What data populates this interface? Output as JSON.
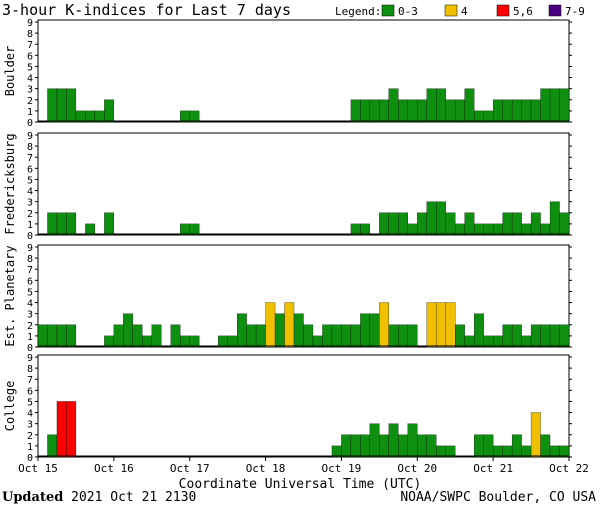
{
  "chart_data": {
    "type": "bar",
    "title": "3-hour K-indices for Last 7 days",
    "legend": {
      "title": "Legend:",
      "position": "top-right",
      "entries": [
        {
          "label": "0-3",
          "color": "#0f8f0f"
        },
        {
          "label": "4",
          "color": "#f0c000"
        },
        {
          "label": "5,6",
          "color": "#ff0000"
        },
        {
          "label": "7-9",
          "color": "#4b0082"
        }
      ]
    },
    "xlabel": "Coordinate Universal Time (UTC)",
    "x_ticks": [
      "Oct 15",
      "Oct 16",
      "Oct 17",
      "Oct 18",
      "Oct 19",
      "Oct 20",
      "Oct 21",
      "Oct 22"
    ],
    "ylim": [
      0,
      9
    ],
    "y_ticks": [
      "0",
      "1",
      "2",
      "3",
      "4",
      "5",
      "6",
      "7",
      "8",
      "9"
    ],
    "interval_hours": 3,
    "grid": false,
    "panels": [
      {
        "name": "Boulder",
        "values": [
          0,
          3,
          3,
          3,
          1,
          1,
          1,
          2,
          0,
          0,
          0,
          0,
          0,
          0,
          0,
          1,
          1,
          0,
          0,
          0,
          0,
          0,
          0,
          0,
          0,
          0,
          0,
          0,
          0,
          0,
          0,
          0,
          0,
          2,
          2,
          2,
          2,
          3,
          2,
          2,
          2,
          3,
          3,
          2,
          2,
          3,
          1,
          1,
          2,
          2,
          2,
          2,
          2,
          3,
          3,
          3,
          1,
          2,
          2,
          0
        ]
      },
      {
        "name": "Fredericksburg",
        "values": [
          0,
          2,
          2,
          2,
          0,
          1,
          0,
          2,
          0,
          0,
          0,
          0,
          0,
          0,
          0,
          1,
          1,
          0,
          0,
          0,
          0,
          0,
          0,
          0,
          0,
          0,
          0,
          0,
          0,
          0,
          0,
          0,
          0,
          1,
          1,
          0,
          2,
          2,
          2,
          1,
          2,
          3,
          3,
          2,
          1,
          2,
          1,
          1,
          1,
          2,
          2,
          1,
          2,
          1,
          3,
          2,
          2,
          2,
          3,
          0
        ]
      },
      {
        "name": "Est. Planetary",
        "values": [
          2,
          2,
          2,
          2,
          0,
          0,
          0,
          1,
          2,
          3,
          2,
          1,
          2,
          0,
          2,
          1,
          1,
          0,
          0,
          1,
          1,
          3,
          2,
          2,
          4,
          3,
          4,
          3,
          2,
          1,
          2,
          2,
          2,
          2,
          3,
          3,
          4,
          2,
          2,
          2,
          0,
          4,
          4,
          4,
          2,
          1,
          3,
          1,
          1,
          2,
          2,
          1,
          2,
          2,
          2,
          2,
          2,
          2,
          1,
          2,
          2,
          0
        ]
      },
      {
        "name": "College",
        "values": [
          0,
          2,
          5,
          5,
          0,
          0,
          0,
          0,
          0,
          0,
          0,
          0,
          0,
          0,
          0,
          0,
          0,
          0,
          0,
          0,
          0,
          0,
          0,
          0,
          0,
          0,
          0,
          0,
          0,
          0,
          0,
          1,
          2,
          2,
          2,
          3,
          2,
          3,
          2,
          3,
          2,
          2,
          1,
          1,
          0,
          0,
          2,
          2,
          1,
          1,
          2,
          1,
          4,
          2,
          1,
          1,
          1,
          0
        ]
      }
    ]
  },
  "footer": {
    "updated_label": "Updated",
    "updated_value": "2021 Oct 21 2130",
    "source": "NOAA/SWPC Boulder, CO USA"
  }
}
